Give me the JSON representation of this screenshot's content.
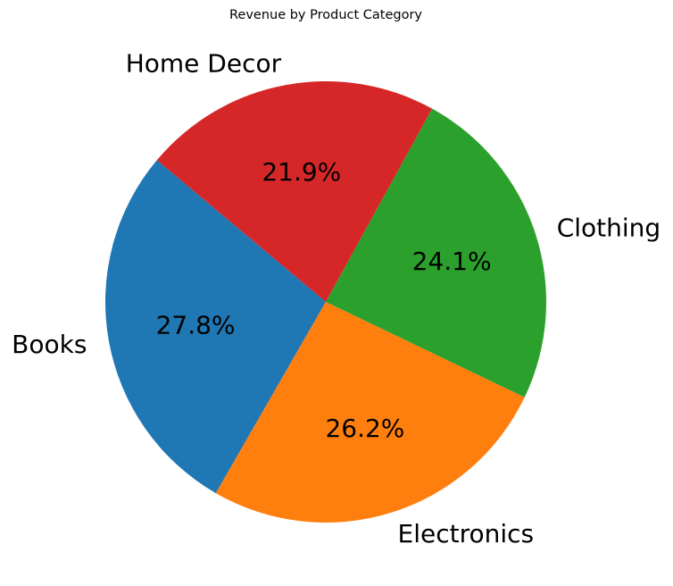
{
  "chart_data": {
    "type": "pie",
    "title": "Revenue by Product Category",
    "categories": [
      "Books",
      "Electronics",
      "Clothing",
      "Home Decor"
    ],
    "values": [
      27.8,
      26.2,
      24.1,
      21.9
    ],
    "percent_labels": [
      "27.8%",
      "26.2%",
      "24.1%",
      "21.9%"
    ],
    "colors": [
      "#1f77b4",
      "#ff7f0e",
      "#2ca02c",
      "#d62728"
    ],
    "start_angle_deg": 140,
    "direction": "counterclockwise",
    "legend": "none"
  }
}
